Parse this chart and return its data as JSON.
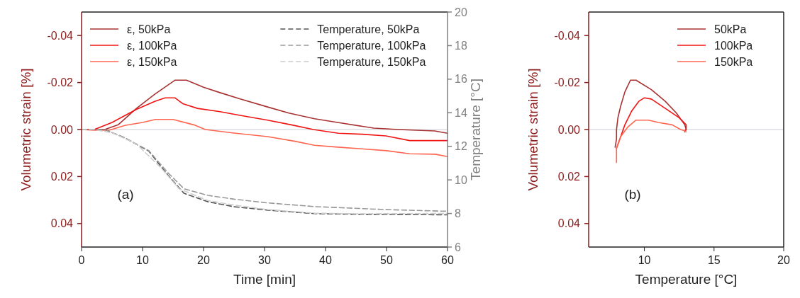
{
  "chart_data": [
    {
      "type": "line",
      "xlabel": "Time [min]",
      "ylabel": "Volumetric strain [%]",
      "y2label": "Temperature [°C]",
      "xlim": [
        0,
        60
      ],
      "xticks": [
        0,
        10,
        20,
        30,
        40,
        50,
        60
      ],
      "ylim": [
        0.05,
        -0.05
      ],
      "yticks": [
        {
          "value": -0.04,
          "label": "-0.04"
        },
        {
          "value": -0.02,
          "label": "-0.02"
        },
        {
          "value": 0,
          "label": "0.00"
        },
        {
          "value": 0.02,
          "label": "0.02"
        },
        {
          "value": 0.04,
          "label": "0.04"
        }
      ],
      "y2lim": [
        6,
        20
      ],
      "y2ticks": [
        6,
        8,
        10,
        12,
        14,
        16,
        18,
        20
      ],
      "legend": "top",
      "grid": false,
      "annotations": [
        "(a)"
      ],
      "ref_lines": [
        {
          "axis": "y",
          "value": 0,
          "color": "#c8ccd4"
        }
      ],
      "series": [
        {
          "name": "ε, 50kPa",
          "color": "#a83232",
          "x": [
            0,
            3.8,
            6,
            9,
            12,
            15.3,
            17.2,
            20,
            22.7,
            26,
            30.5,
            34,
            38.2,
            42,
            47.9,
            52,
            57.9,
            60
          ],
          "values": [
            0,
            0,
            -0.002,
            -0.009,
            -0.015,
            -0.021,
            -0.021,
            -0.018,
            -0.0157,
            -0.013,
            -0.0096,
            -0.007,
            -0.0046,
            -0.003,
            -0.0006,
            0,
            0.0006,
            0.0016
          ]
        },
        {
          "name": "ε, 100kPa",
          "color": "#f01414",
          "x": [
            0,
            2.1,
            5,
            9,
            12,
            13.7,
            15.3,
            16.6,
            19,
            22.7,
            26,
            30.5,
            34.4,
            38,
            42.1,
            46,
            49.9,
            53.8,
            60
          ],
          "values": [
            0,
            0,
            -0.003,
            -0.0086,
            -0.012,
            -0.0135,
            -0.0135,
            -0.011,
            -0.009,
            -0.0076,
            -0.006,
            -0.004,
            -0.002,
            0,
            0.0016,
            0.002,
            0.0027,
            0.0047,
            0.0047
          ]
        },
        {
          "name": "ε, 150kPa",
          "color": "#ff6650",
          "x": [
            0,
            2,
            4.5,
            7.2,
            10,
            12.1,
            15,
            18.4,
            20.3,
            25,
            30.5,
            35,
            38.2,
            42,
            45.9,
            50,
            53.8,
            58,
            60
          ],
          "values": [
            0,
            0.0003,
            0.0003,
            -0.0018,
            -0.003,
            -0.0043,
            -0.0043,
            -0.002,
            0,
            0.0015,
            0.003,
            0.005,
            0.0067,
            0.0075,
            0.0082,
            0.009,
            0.0103,
            0.0105,
            0.0115
          ]
        },
        {
          "name": "Temperature, 50kPa",
          "color": "#555555",
          "axis": "y2",
          "line_style": "dashed",
          "x": [
            0,
            3.8,
            7.1,
            11,
            14.1,
            16.8,
            20.7,
            25,
            30.5,
            38.2,
            45,
            60
          ],
          "values": [
            13,
            13,
            12.5,
            11.72,
            10.31,
            9.2,
            8.7,
            8.4,
            8.2,
            7.99,
            7.95,
            7.92
          ]
        },
        {
          "name": "Temperature, 100kPa",
          "color": "#999999",
          "axis": "y2",
          "line_style": "dashed",
          "x": [
            0,
            3.8,
            7.1,
            11,
            14.1,
            16.8,
            20.7,
            25,
            30.5,
            38.2,
            49.9,
            60
          ],
          "values": [
            13,
            13,
            12.5,
            11.75,
            10.45,
            9.47,
            9.08,
            8.85,
            8.63,
            8.41,
            8.23,
            8.13
          ]
        },
        {
          "name": "Temperature, 150kPa",
          "color": "#cccccc",
          "axis": "y2",
          "line_style": "dashed",
          "x": [
            0,
            2,
            5.1,
            9,
            13,
            16,
            20.7,
            25,
            30.5,
            38.2,
            45,
            60
          ],
          "values": [
            13,
            13,
            12.8,
            12.14,
            10.73,
            9.47,
            8.77,
            8.5,
            8.23,
            8.02,
            7.98,
            8.0
          ]
        }
      ]
    },
    {
      "type": "line",
      "xlabel": "Temperature [°C]",
      "ylabel": "Volumetric strain [%]",
      "xlim": [
        6,
        20
      ],
      "xticks": [
        10,
        15,
        20
      ],
      "ylim": [
        0.05,
        -0.05
      ],
      "yticks": [
        {
          "value": -0.04,
          "label": "-0.04"
        },
        {
          "value": -0.02,
          "label": "-0.02"
        },
        {
          "value": 0,
          "label": "0.00"
        },
        {
          "value": 0.02,
          "label": "0.02"
        },
        {
          "value": 0.04,
          "label": "0.04"
        }
      ],
      "legend": "top right",
      "grid": false,
      "annotations": [
        "(b)"
      ],
      "ref_lines": [
        {
          "axis": "y",
          "value": 0,
          "color": "#c8ccd4"
        }
      ],
      "series": [
        {
          "name": "50kPa",
          "color": "#a83232",
          "x": [
            7.9,
            8.0,
            8.0,
            8.1,
            8.3,
            8.6,
            9.0,
            9.4,
            10.5,
            11.5,
            12.3,
            12.9,
            13.0,
            12.9
          ],
          "values": [
            0.0075,
            0.004,
            0,
            -0.005,
            -0.01,
            -0.016,
            -0.021,
            -0.021,
            -0.017,
            -0.012,
            -0.007,
            -0.002,
            0,
            0.001
          ]
        },
        {
          "name": "100kPa",
          "color": "#f01414",
          "x": [
            8.0,
            8.3,
            8.6,
            9.1,
            9.6,
            10,
            10.5,
            11.5,
            12.5,
            13.0,
            13.0,
            12.9
          ],
          "values": [
            0.008,
            0.003,
            -0.002,
            -0.008,
            -0.012,
            -0.0135,
            -0.013,
            -0.009,
            -0.005,
            -0.002,
            0,
            0.0005
          ]
        },
        {
          "name": "150kPa",
          "color": "#ff6650",
          "x": [
            8.0,
            8.0,
            8.3,
            8.8,
            9.4,
            10.3,
            11,
            12,
            12.6,
            12.9,
            13.0
          ],
          "values": [
            0.014,
            0.008,
            0.003,
            -0.001,
            -0.004,
            -0.004,
            -0.003,
            -0.002,
            0,
            0.0005,
            0.001
          ]
        }
      ]
    }
  ]
}
